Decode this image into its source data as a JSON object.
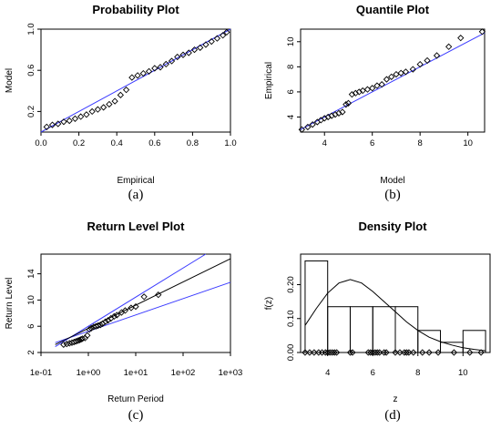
{
  "colors": {
    "reference_line": "#3a3aff",
    "points": "#000000",
    "fit_line": "#000000"
  },
  "chart_data": [
    {
      "type": "scatter",
      "title": "Probability Plot",
      "xlabel": "Empirical",
      "ylabel": "Model",
      "caption": "(a)",
      "xlim": [
        0,
        1
      ],
      "ylim": [
        0,
        1
      ],
      "xticks": [
        0.0,
        0.2,
        0.4,
        0.6,
        0.8,
        1.0
      ],
      "yticks": [
        0.2,
        0.6,
        1.0
      ],
      "xtick_labels": [
        "0.0",
        "0.2",
        "0.4",
        "0.6",
        "0.8",
        "1.0"
      ],
      "ytick_labels": [
        "0.2",
        "0.6",
        "1.0"
      ],
      "reference_line": [
        [
          0,
          0
        ],
        [
          1,
          1
        ]
      ],
      "points": [
        [
          0.03,
          0.05
        ],
        [
          0.06,
          0.07
        ],
        [
          0.09,
          0.08
        ],
        [
          0.12,
          0.1
        ],
        [
          0.15,
          0.11
        ],
        [
          0.18,
          0.13
        ],
        [
          0.21,
          0.15
        ],
        [
          0.24,
          0.17
        ],
        [
          0.27,
          0.2
        ],
        [
          0.3,
          0.22
        ],
        [
          0.33,
          0.24
        ],
        [
          0.36,
          0.27
        ],
        [
          0.39,
          0.3
        ],
        [
          0.42,
          0.36
        ],
        [
          0.45,
          0.41
        ],
        [
          0.48,
          0.53
        ],
        [
          0.51,
          0.55
        ],
        [
          0.54,
          0.57
        ],
        [
          0.57,
          0.59
        ],
        [
          0.6,
          0.62
        ],
        [
          0.63,
          0.63
        ],
        [
          0.66,
          0.66
        ],
        [
          0.69,
          0.69
        ],
        [
          0.72,
          0.73
        ],
        [
          0.75,
          0.75
        ],
        [
          0.78,
          0.77
        ],
        [
          0.81,
          0.8
        ],
        [
          0.84,
          0.82
        ],
        [
          0.87,
          0.85
        ],
        [
          0.9,
          0.88
        ],
        [
          0.93,
          0.91
        ],
        [
          0.96,
          0.94
        ],
        [
          0.98,
          0.97
        ]
      ]
    },
    {
      "type": "scatter",
      "title": "Quantile Plot",
      "xlabel": "Model",
      "ylabel": "Empirical",
      "caption": "(b)",
      "xlim": [
        3,
        10.7
      ],
      "ylim": [
        2.8,
        11
      ],
      "xticks": [
        4,
        6,
        8,
        10
      ],
      "yticks": [
        4,
        6,
        8,
        10
      ],
      "xtick_labels": [
        "4",
        "6",
        "8",
        "10"
      ],
      "ytick_labels": [
        "4",
        "6",
        "8",
        "10"
      ],
      "reference_line": [
        [
          3,
          3
        ],
        [
          10.7,
          10.7
        ]
      ],
      "points": [
        [
          3.05,
          3.0
        ],
        [
          3.3,
          3.2
        ],
        [
          3.5,
          3.4
        ],
        [
          3.7,
          3.6
        ],
        [
          3.85,
          3.75
        ],
        [
          4.0,
          3.9
        ],
        [
          4.15,
          4.0
        ],
        [
          4.3,
          4.1
        ],
        [
          4.45,
          4.2
        ],
        [
          4.6,
          4.3
        ],
        [
          4.75,
          4.4
        ],
        [
          4.9,
          5.0
        ],
        [
          5.0,
          5.1
        ],
        [
          5.15,
          5.8
        ],
        [
          5.3,
          5.9
        ],
        [
          5.45,
          6.0
        ],
        [
          5.6,
          6.1
        ],
        [
          5.8,
          6.2
        ],
        [
          6.0,
          6.3
        ],
        [
          6.2,
          6.5
        ],
        [
          6.4,
          6.6
        ],
        [
          6.6,
          7.0
        ],
        [
          6.8,
          7.2
        ],
        [
          7.0,
          7.4
        ],
        [
          7.2,
          7.5
        ],
        [
          7.4,
          7.6
        ],
        [
          7.7,
          7.8
        ],
        [
          8.0,
          8.2
        ],
        [
          8.3,
          8.5
        ],
        [
          8.7,
          8.9
        ],
        [
          9.2,
          9.6
        ],
        [
          9.7,
          10.3
        ],
        [
          10.6,
          10.8
        ]
      ]
    },
    {
      "type": "scatter",
      "title": "Return Level Plot",
      "xlabel": "Return Period",
      "ylabel": "Return Level",
      "caption": "(c)",
      "x_scale": "log",
      "xlim": [
        0.1,
        1000
      ],
      "ylim": [
        2,
        17
      ],
      "xticks": [
        0.1,
        1,
        10,
        100,
        1000
      ],
      "yticks": [
        2,
        6,
        10,
        14
      ],
      "xtick_labels": [
        "1e-01",
        "1e+00",
        "1e+01",
        "1e+02",
        "1e+03"
      ],
      "ytick_labels": [
        "2",
        "6",
        "10",
        "14"
      ],
      "fit_line": [
        [
          0.2,
          3.2
        ],
        [
          1000,
          16.3
        ]
      ],
      "ci_upper": [
        [
          0.2,
          2.9
        ],
        [
          300,
          17.0
        ]
      ],
      "ci_lower": [
        [
          0.2,
          3.5
        ],
        [
          1000,
          12.7
        ]
      ],
      "points": [
        [
          0.3,
          3.2
        ],
        [
          0.35,
          3.3
        ],
        [
          0.4,
          3.4
        ],
        [
          0.45,
          3.5
        ],
        [
          0.5,
          3.6
        ],
        [
          0.55,
          3.7
        ],
        [
          0.6,
          3.8
        ],
        [
          0.65,
          3.9
        ],
        [
          0.7,
          4.0
        ],
        [
          0.75,
          4.1
        ],
        [
          0.85,
          4.2
        ],
        [
          0.95,
          4.6
        ],
        [
          1.05,
          5.5
        ],
        [
          1.15,
          5.7
        ],
        [
          1.3,
          5.9
        ],
        [
          1.45,
          6.0
        ],
        [
          1.6,
          6.1
        ],
        [
          1.8,
          6.2
        ],
        [
          2.0,
          6.4
        ],
        [
          2.3,
          6.7
        ],
        [
          2.6,
          6.9
        ],
        [
          3.0,
          7.2
        ],
        [
          3.5,
          7.5
        ],
        [
          4.0,
          7.7
        ],
        [
          5.0,
          8.1
        ],
        [
          6.0,
          8.4
        ],
        [
          8.0,
          8.8
        ],
        [
          10.0,
          9.0
        ],
        [
          15.0,
          10.5
        ],
        [
          30.0,
          10.8
        ]
      ]
    },
    {
      "type": "histogram",
      "title": "Density Plot",
      "xlabel": "z",
      "ylabel": "f(z)",
      "caption": "(d)",
      "xlim": [
        2.8,
        11.2
      ],
      "ylim": [
        0,
        0.29
      ],
      "xticks": [
        4,
        6,
        8,
        10
      ],
      "yticks": [
        0.0,
        0.1,
        0.2
      ],
      "xtick_labels": [
        "4",
        "6",
        "8",
        "10"
      ],
      "ytick_labels": [
        "0.00",
        "0.10",
        "0.20"
      ],
      "bins": [
        [
          3,
          4,
          0.27
        ],
        [
          4,
          5,
          0.135
        ],
        [
          5,
          6,
          0.135
        ],
        [
          6,
          7,
          0.135
        ],
        [
          7,
          8,
          0.135
        ],
        [
          8,
          9,
          0.065
        ],
        [
          9,
          10,
          0.03
        ],
        [
          10,
          11,
          0.065
        ]
      ],
      "density_curve": [
        [
          3,
          0.08
        ],
        [
          3.5,
          0.13
        ],
        [
          4,
          0.175
        ],
        [
          4.5,
          0.205
        ],
        [
          5,
          0.215
        ],
        [
          5.5,
          0.205
        ],
        [
          6,
          0.18
        ],
        [
          6.5,
          0.15
        ],
        [
          7,
          0.12
        ],
        [
          7.5,
          0.09
        ],
        [
          8,
          0.065
        ],
        [
          8.5,
          0.045
        ],
        [
          9,
          0.032
        ],
        [
          9.5,
          0.022
        ],
        [
          10,
          0.014
        ],
        [
          10.5,
          0.009
        ],
        [
          11,
          0.005
        ]
      ],
      "rug": [
        3.0,
        3.2,
        3.4,
        3.6,
        3.75,
        3.9,
        4.0,
        4.1,
        4.2,
        4.3,
        4.4,
        5.0,
        5.1,
        5.8,
        5.9,
        6.0,
        6.1,
        6.2,
        6.3,
        6.5,
        6.6,
        7.0,
        7.2,
        7.4,
        7.5,
        7.6,
        7.8,
        8.2,
        8.5,
        8.9,
        9.6,
        10.3,
        10.8
      ]
    }
  ]
}
